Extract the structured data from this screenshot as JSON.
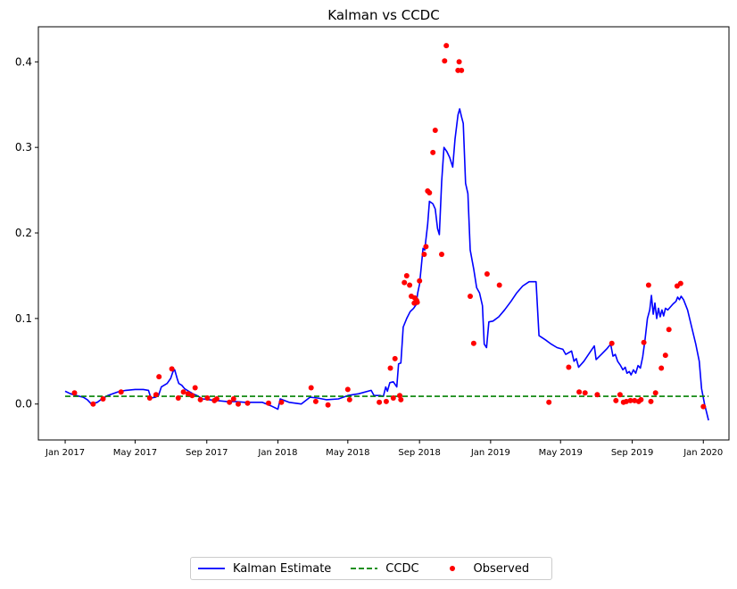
{
  "chart_data": {
    "type": "line",
    "title": "Kalman vs CCDC",
    "xlabel": "",
    "ylabel": "",
    "xlim": [
      "2016-11-16",
      "2020-02-14"
    ],
    "ylim": [
      -0.042,
      0.441
    ],
    "grid": false,
    "legend_position": "bottom-center-outside",
    "xticks": [
      "2017-01-01",
      "2017-05-01",
      "2017-09-01",
      "2018-01-01",
      "2018-05-01",
      "2018-09-01",
      "2019-01-01",
      "2019-05-01",
      "2019-09-01",
      "2020-01-01"
    ],
    "xtick_labels": [
      "Jan 2017",
      "May 2017",
      "Sep 2017",
      "Jan 2018",
      "May 2018",
      "Sep 2018",
      "Jan 2019",
      "May 2019",
      "Sep 2019",
      "Jan 2020"
    ],
    "yticks": [
      0.0,
      0.1,
      0.2,
      0.3,
      0.4
    ],
    "ytick_labels": [
      "0.0",
      "0.1",
      "0.2",
      "0.3",
      "0.4"
    ],
    "series": [
      {
        "name": "Kalman Estimate",
        "kind": "line",
        "color": "#0000ff",
        "style": "solid",
        "points": [
          [
            "2017-01-01",
            0.015
          ],
          [
            "2017-01-10",
            0.012
          ],
          [
            "2017-01-20",
            0.01
          ],
          [
            "2017-02-01",
            0.008
          ],
          [
            "2017-02-08",
            0.005
          ],
          [
            "2017-02-15",
            0.0
          ],
          [
            "2017-02-25",
            0.002
          ],
          [
            "2017-03-05",
            0.006
          ],
          [
            "2017-03-15",
            0.01
          ],
          [
            "2017-04-01",
            0.014
          ],
          [
            "2017-04-15",
            0.016
          ],
          [
            "2017-05-01",
            0.017
          ],
          [
            "2017-05-15",
            0.017
          ],
          [
            "2017-05-24",
            0.016
          ],
          [
            "2017-05-28",
            0.007
          ],
          [
            "2017-06-05",
            0.008
          ],
          [
            "2017-06-10",
            0.01
          ],
          [
            "2017-06-15",
            0.02
          ],
          [
            "2017-06-25",
            0.024
          ],
          [
            "2017-07-01",
            0.03
          ],
          [
            "2017-07-05",
            0.038
          ],
          [
            "2017-07-08",
            0.04
          ],
          [
            "2017-07-12",
            0.03
          ],
          [
            "2017-07-15",
            0.024
          ],
          [
            "2017-07-20",
            0.022
          ],
          [
            "2017-07-25",
            0.018
          ],
          [
            "2017-08-01",
            0.015
          ],
          [
            "2017-08-08",
            0.012
          ],
          [
            "2017-08-15",
            0.01
          ],
          [
            "2017-08-25",
            0.006
          ],
          [
            "2017-09-05",
            0.005
          ],
          [
            "2017-09-20",
            0.004
          ],
          [
            "2017-10-05",
            0.003
          ],
          [
            "2017-10-20",
            0.003
          ],
          [
            "2017-11-05",
            0.002
          ],
          [
            "2017-11-20",
            0.002
          ],
          [
            "2017-12-05",
            0.002
          ],
          [
            "2017-12-20",
            -0.002
          ],
          [
            "2018-01-01",
            -0.006
          ],
          [
            "2018-01-05",
            0.006
          ],
          [
            "2018-01-20",
            0.002
          ],
          [
            "2018-02-10",
            0.0
          ],
          [
            "2018-02-25",
            0.008
          ],
          [
            "2018-03-10",
            0.007
          ],
          [
            "2018-03-25",
            0.005
          ],
          [
            "2018-04-15",
            0.006
          ],
          [
            "2018-05-01",
            0.01
          ],
          [
            "2018-05-20",
            0.012
          ],
          [
            "2018-06-10",
            0.016
          ],
          [
            "2018-06-15",
            0.01
          ],
          [
            "2018-06-25",
            0.01
          ],
          [
            "2018-07-01",
            0.009
          ],
          [
            "2018-07-05",
            0.02
          ],
          [
            "2018-07-08",
            0.015
          ],
          [
            "2018-07-12",
            0.025
          ],
          [
            "2018-07-18",
            0.026
          ],
          [
            "2018-07-24",
            0.02
          ],
          [
            "2018-07-27",
            0.047
          ],
          [
            "2018-07-31",
            0.048
          ],
          [
            "2018-08-04",
            0.09
          ],
          [
            "2018-08-10",
            0.1
          ],
          [
            "2018-08-16",
            0.108
          ],
          [
            "2018-08-22",
            0.112
          ],
          [
            "2018-08-26",
            0.116
          ],
          [
            "2018-08-29",
            0.13
          ],
          [
            "2018-09-01",
            0.14
          ],
          [
            "2018-09-04",
            0.16
          ],
          [
            "2018-09-07",
            0.182
          ],
          [
            "2018-09-10",
            0.18
          ],
          [
            "2018-09-15",
            0.21
          ],
          [
            "2018-09-18",
            0.237
          ],
          [
            "2018-09-24",
            0.234
          ],
          [
            "2018-09-28",
            0.228
          ],
          [
            "2018-10-02",
            0.205
          ],
          [
            "2018-10-05",
            0.198
          ],
          [
            "2018-10-09",
            0.26
          ],
          [
            "2018-10-13",
            0.3
          ],
          [
            "2018-10-18",
            0.295
          ],
          [
            "2018-10-23",
            0.288
          ],
          [
            "2018-10-28",
            0.277
          ],
          [
            "2018-11-01",
            0.31
          ],
          [
            "2018-11-06",
            0.338
          ],
          [
            "2018-11-09",
            0.345
          ],
          [
            "2018-11-12",
            0.336
          ],
          [
            "2018-11-15",
            0.328
          ],
          [
            "2018-11-19",
            0.258
          ],
          [
            "2018-11-23",
            0.246
          ],
          [
            "2018-11-27",
            0.18
          ],
          [
            "2018-12-03",
            0.158
          ],
          [
            "2018-12-08",
            0.136
          ],
          [
            "2018-12-13",
            0.13
          ],
          [
            "2018-12-18",
            0.115
          ],
          [
            "2018-12-21",
            0.07
          ],
          [
            "2018-12-25",
            0.066
          ],
          [
            "2018-12-29",
            0.096
          ],
          [
            "2019-01-05",
            0.097
          ],
          [
            "2019-01-15",
            0.102
          ],
          [
            "2019-01-25",
            0.11
          ],
          [
            "2019-02-05",
            0.12
          ],
          [
            "2019-02-15",
            0.13
          ],
          [
            "2019-02-25",
            0.138
          ],
          [
            "2019-03-08",
            0.143
          ],
          [
            "2019-03-20",
            0.143
          ],
          [
            "2019-03-25",
            0.08
          ],
          [
            "2019-04-05",
            0.075
          ],
          [
            "2019-04-15",
            0.07
          ],
          [
            "2019-04-25",
            0.066
          ],
          [
            "2019-05-05",
            0.064
          ],
          [
            "2019-05-10",
            0.058
          ],
          [
            "2019-05-15",
            0.06
          ],
          [
            "2019-05-20",
            0.062
          ],
          [
            "2019-05-24",
            0.05
          ],
          [
            "2019-05-28",
            0.053
          ],
          [
            "2019-06-01",
            0.043
          ],
          [
            "2019-06-10",
            0.05
          ],
          [
            "2019-06-20",
            0.06
          ],
          [
            "2019-06-28",
            0.068
          ],
          [
            "2019-07-01",
            0.052
          ],
          [
            "2019-07-10",
            0.058
          ],
          [
            "2019-07-20",
            0.065
          ],
          [
            "2019-07-26",
            0.07
          ],
          [
            "2019-07-30",
            0.056
          ],
          [
            "2019-08-03",
            0.058
          ],
          [
            "2019-08-07",
            0.05
          ],
          [
            "2019-08-12",
            0.045
          ],
          [
            "2019-08-16",
            0.04
          ],
          [
            "2019-08-20",
            0.043
          ],
          [
            "2019-08-23",
            0.036
          ],
          [
            "2019-08-27",
            0.038
          ],
          [
            "2019-08-30",
            0.034
          ],
          [
            "2019-09-03",
            0.04
          ],
          [
            "2019-09-07",
            0.036
          ],
          [
            "2019-09-11",
            0.045
          ],
          [
            "2019-09-15",
            0.042
          ],
          [
            "2019-09-19",
            0.055
          ],
          [
            "2019-09-23",
            0.075
          ],
          [
            "2019-09-27",
            0.1
          ],
          [
            "2019-10-01",
            0.11
          ],
          [
            "2019-10-04",
            0.127
          ],
          [
            "2019-10-07",
            0.105
          ],
          [
            "2019-10-10",
            0.118
          ],
          [
            "2019-10-13",
            0.1
          ],
          [
            "2019-10-16",
            0.112
          ],
          [
            "2019-10-19",
            0.102
          ],
          [
            "2019-10-22",
            0.11
          ],
          [
            "2019-10-25",
            0.103
          ],
          [
            "2019-10-28",
            0.112
          ],
          [
            "2019-11-01",
            0.11
          ],
          [
            "2019-11-05",
            0.113
          ],
          [
            "2019-11-10",
            0.117
          ],
          [
            "2019-11-15",
            0.12
          ],
          [
            "2019-11-18",
            0.125
          ],
          [
            "2019-11-21",
            0.122
          ],
          [
            "2019-11-24",
            0.126
          ],
          [
            "2019-11-28",
            0.122
          ],
          [
            "2019-12-05",
            0.11
          ],
          [
            "2019-12-12",
            0.09
          ],
          [
            "2019-12-19",
            0.07
          ],
          [
            "2019-12-25",
            0.05
          ],
          [
            "2019-12-29",
            0.018
          ],
          [
            "2020-01-03",
            0.0
          ],
          [
            "2020-01-10",
            -0.019
          ]
        ]
      },
      {
        "name": "CCDC",
        "kind": "line",
        "color": "#008000",
        "style": "dashed",
        "points": [
          [
            "2017-01-01",
            0.009
          ],
          [
            "2020-01-10",
            0.009
          ]
        ]
      },
      {
        "name": "Observed",
        "kind": "scatter",
        "color": "#ff0000",
        "points": [
          [
            "2017-01-17",
            0.013
          ],
          [
            "2017-02-18",
            0.0
          ],
          [
            "2017-03-07",
            0.006
          ],
          [
            "2017-04-07",
            0.014
          ],
          [
            "2017-05-26",
            0.007
          ],
          [
            "2017-06-06",
            0.011
          ],
          [
            "2017-06-11",
            0.032
          ],
          [
            "2017-07-03",
            0.041
          ],
          [
            "2017-07-14",
            0.007
          ],
          [
            "2017-07-23",
            0.014
          ],
          [
            "2017-07-31",
            0.012
          ],
          [
            "2017-08-07",
            0.01
          ],
          [
            "2017-08-12",
            0.019
          ],
          [
            "2017-08-21",
            0.005
          ],
          [
            "2017-09-02",
            0.007
          ],
          [
            "2017-09-14",
            0.004
          ],
          [
            "2017-09-18",
            0.006
          ],
          [
            "2017-10-10",
            0.002
          ],
          [
            "2017-10-17",
            0.006
          ],
          [
            "2017-10-25",
            0.0
          ],
          [
            "2017-11-10",
            0.001
          ],
          [
            "2017-12-16",
            0.001
          ],
          [
            "2018-01-07",
            0.002
          ],
          [
            "2018-02-27",
            0.019
          ],
          [
            "2018-03-07",
            0.003
          ],
          [
            "2018-03-28",
            -0.001
          ],
          [
            "2018-05-01",
            0.017
          ],
          [
            "2018-05-04",
            0.005
          ],
          [
            "2018-06-24",
            0.002
          ],
          [
            "2018-07-06",
            0.003
          ],
          [
            "2018-07-13",
            0.042
          ],
          [
            "2018-07-18",
            0.007
          ],
          [
            "2018-07-21",
            0.053
          ],
          [
            "2018-07-29",
            0.01
          ],
          [
            "2018-07-31",
            0.005
          ],
          [
            "2018-08-06",
            0.142
          ],
          [
            "2018-08-10",
            0.15
          ],
          [
            "2018-08-15",
            0.139
          ],
          [
            "2018-08-18",
            0.126
          ],
          [
            "2018-08-23",
            0.118
          ],
          [
            "2018-08-24",
            0.124
          ],
          [
            "2018-08-27",
            0.121
          ],
          [
            "2018-08-28",
            0.119
          ],
          [
            "2018-09-01",
            0.144
          ],
          [
            "2018-09-09",
            0.175
          ],
          [
            "2018-09-12",
            0.184
          ],
          [
            "2018-09-15",
            0.249
          ],
          [
            "2018-09-18",
            0.247
          ],
          [
            "2018-09-24",
            0.294
          ],
          [
            "2018-09-28",
            0.32
          ],
          [
            "2018-10-09",
            0.175
          ],
          [
            "2018-10-14",
            0.401
          ],
          [
            "2018-10-17",
            0.419
          ],
          [
            "2018-11-06",
            0.39
          ],
          [
            "2018-11-08",
            0.4
          ],
          [
            "2018-11-12",
            0.39
          ],
          [
            "2018-11-27",
            0.126
          ],
          [
            "2018-12-03",
            0.071
          ],
          [
            "2018-12-26",
            0.152
          ],
          [
            "2019-01-16",
            0.139
          ],
          [
            "2019-04-11",
            0.002
          ],
          [
            "2019-05-15",
            0.043
          ],
          [
            "2019-06-02",
            0.014
          ],
          [
            "2019-06-12",
            0.013
          ],
          [
            "2019-07-03",
            0.011
          ],
          [
            "2019-07-28",
            0.071
          ],
          [
            "2019-08-04",
            0.004
          ],
          [
            "2019-08-11",
            0.011
          ],
          [
            "2019-08-17",
            0.002
          ],
          [
            "2019-08-22",
            0.003
          ],
          [
            "2019-08-29",
            0.004
          ],
          [
            "2019-09-05",
            0.004
          ],
          [
            "2019-09-12",
            0.003
          ],
          [
            "2019-09-16",
            0.005
          ],
          [
            "2019-09-21",
            0.072
          ],
          [
            "2019-09-29",
            0.139
          ],
          [
            "2019-10-03",
            0.003
          ],
          [
            "2019-10-11",
            0.013
          ],
          [
            "2019-10-21",
            0.042
          ],
          [
            "2019-10-28",
            0.057
          ],
          [
            "2019-11-03",
            0.087
          ],
          [
            "2019-11-17",
            0.138
          ],
          [
            "2019-11-23",
            0.141
          ],
          [
            "2020-01-01",
            -0.003
          ]
        ]
      }
    ]
  },
  "colors": {
    "kalman": "#0000ff",
    "ccdc": "#008000",
    "observed": "#ff0000",
    "axis": "#000000"
  },
  "legend": {
    "items": [
      "Kalman Estimate",
      "CCDC",
      "Observed"
    ]
  }
}
